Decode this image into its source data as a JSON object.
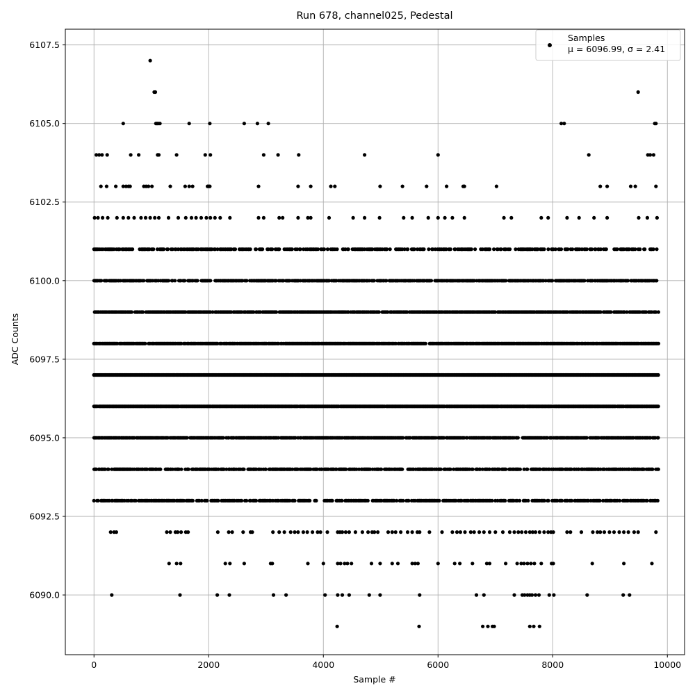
{
  "chart_data": {
    "type": "scatter",
    "title": "Run 678, channel025, Pedestal",
    "xlabel": "Sample #",
    "ylabel": "ADC Counts",
    "xlim": [
      -500,
      10300
    ],
    "ylim": [
      6088.1,
      6108.0
    ],
    "x_ticks": [
      0,
      2000,
      4000,
      6000,
      8000,
      10000
    ],
    "y_ticks": [
      6090.0,
      6092.5,
      6095.0,
      6097.5,
      6100.0,
      6102.5,
      6105.0,
      6107.5
    ],
    "x_tick_labels": [
      "0",
      "2000",
      "4000",
      "6000",
      "8000",
      "10000"
    ],
    "y_tick_labels": [
      "6090.0",
      "6092.5",
      "6095.0",
      "6097.5",
      "6100.0",
      "6102.5",
      "6105.0",
      "6107.5"
    ],
    "grid": true,
    "legend_position": "top-right",
    "series": [
      {
        "name": "Samples",
        "stats_label": "μ = 6096.99, σ = 2.41",
        "color": "#000000",
        "marker": "circle",
        "n_samples": 9850,
        "levels": [
          {
            "y": 6107,
            "x": [
              980
            ]
          },
          {
            "y": 6106,
            "x": [
              1050,
              1070,
              9490
            ]
          },
          {
            "y": 6105,
            "x": [
              510,
              1080,
              1100,
              1120,
              1150,
              1660,
              2020,
              2620,
              2850,
              3040,
              8150,
              8200,
              9780,
              9800
            ]
          },
          {
            "y": 6104,
            "x": [
              40,
              90,
              140,
              230,
              640,
              780,
              1110,
              1130,
              1440,
              1940,
              2030,
              2960,
              3210,
              3570,
              4720,
              6000,
              8630,
              9660,
              9700,
              9760
            ]
          },
          {
            "y": 6103,
            "x": [
              120,
              220,
              380,
              510,
              560,
              600,
              630,
              870,
              910,
              950,
              1010,
              1330,
              1590,
              1660,
              1720,
              1980,
              2000,
              2020,
              2870,
              3560,
              3780,
              4130,
              4200,
              4990,
              5380,
              5800,
              6150,
              6440,
              6460,
              7020,
              8830,
              8950,
              9360,
              9440,
              9800
            ]
          },
          {
            "y": 6102,
            "x": [
              10,
              70,
              150,
              240,
              400,
              510,
              600,
              700,
              820,
              900,
              980,
              1060,
              1130,
              1300,
              1470,
              1600,
              1700,
              1780,
              1870,
              1960,
              2030,
              2110,
              2200,
              2370,
              2870,
              2960,
              3230,
              3290,
              3560,
              3730,
              3780,
              4100,
              4520,
              4720,
              4980,
              5400,
              5550,
              5830,
              6000,
              6120,
              6250,
              6460,
              7150,
              7280,
              7800,
              7920,
              8250,
              8460,
              8720,
              8950,
              9500,
              9650,
              9820
            ]
          },
          {
            "y": 6101,
            "range": [
              0,
              9850
            ],
            "density": 0.52
          },
          {
            "y": 6100,
            "range": [
              0,
              9850
            ],
            "density": 0.72
          },
          {
            "y": 6099,
            "range": [
              0,
              9850
            ],
            "density": 0.8
          },
          {
            "y": 6098,
            "range": [
              0,
              9850
            ],
            "density": 0.9
          },
          {
            "y": 6097,
            "range": [
              0,
              9850
            ],
            "density": 1.0
          },
          {
            "y": 6096,
            "range": [
              0,
              9850
            ],
            "density": 0.98
          },
          {
            "y": 6095,
            "range": [
              0,
              9850
            ],
            "density": 0.78
          },
          {
            "y": 6094,
            "range": [
              0,
              9850
            ],
            "density": 0.68
          },
          {
            "y": 6093,
            "range": [
              0,
              9850
            ],
            "density": 0.58
          },
          {
            "y": 6092,
            "x": [
              290,
              350,
              390,
              1270,
              1330,
              1420,
              1460,
              1520,
              1600,
              1640,
              2160,
              2350,
              2410,
              2600,
              2730,
              2760,
              3120,
              3230,
              3320,
              3430,
              3500,
              3560,
              3650,
              3720,
              3810,
              3900,
              3950,
              4070,
              4250,
              4290,
              4330,
              4390,
              4450,
              4560,
              4680,
              4780,
              4850,
              4890,
              4950,
              5130,
              5200,
              5260,
              5350,
              5470,
              5550,
              5640,
              5680,
              5850,
              6070,
              6250,
              6330,
              6390,
              6470,
              6570,
              6630,
              6720,
              6800,
              6900,
              7000,
              7130,
              7250,
              7330,
              7400,
              7460,
              7530,
              7600,
              7650,
              7700,
              7770,
              7850,
              7920,
              7970,
              8010,
              8250,
              8310,
              8500,
              8700,
              8780,
              8830,
              8900,
              8990,
              9070,
              9160,
              9240,
              9320,
              9420,
              9490,
              9800
            ]
          },
          {
            "y": 6091,
            "x": [
              1310,
              1440,
              1510,
              2290,
              2370,
              2620,
              3080,
              3110,
              3730,
              4000,
              4250,
              4300,
              4370,
              4420,
              4490,
              4840,
              4990,
              5200,
              5300,
              5550,
              5600,
              5650,
              6000,
              6290,
              6380,
              6600,
              6850,
              6900,
              7180,
              7380,
              7450,
              7500,
              7560,
              7620,
              7680,
              7800,
              7980,
              8010,
              8690,
              9240,
              9730
            ]
          },
          {
            "y": 6090,
            "x": [
              310,
              1500,
              2150,
              2360,
              3130,
              3350,
              4030,
              4250,
              4330,
              4450,
              4800,
              4990,
              5680,
              6670,
              6800,
              7330,
              7470,
              7510,
              7560,
              7600,
              7640,
              7700,
              7760,
              7940,
              8020,
              8600,
              9230,
              9340
            ]
          },
          {
            "y": 6089,
            "x": [
              4240,
              5670,
              6780,
              6870,
              6950,
              6980,
              7600,
              7670,
              7770
            ]
          }
        ]
      }
    ]
  }
}
